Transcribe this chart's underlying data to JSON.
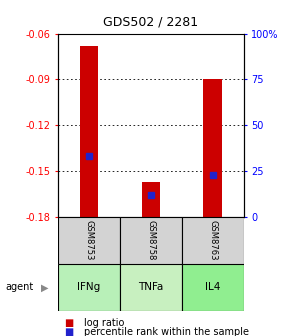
{
  "title": "GDS502 / 2281",
  "samples": [
    "GSM8753",
    "GSM8758",
    "GSM8763"
  ],
  "agents": [
    "IFNg",
    "TNFa",
    "IL4"
  ],
  "log_ratios": [
    -0.068,
    -0.157,
    -0.09
  ],
  "log_ratio_bases": [
    -0.18,
    -0.18,
    -0.18
  ],
  "percentile_ranks": [
    33,
    12,
    23
  ],
  "ylim_left": [
    -0.18,
    -0.06
  ],
  "ylim_right": [
    0,
    100
  ],
  "yticks_left": [
    -0.18,
    -0.15,
    -0.12,
    -0.09,
    -0.06
  ],
  "yticks_right": [
    0,
    25,
    50,
    75,
    100
  ],
  "ytick_labels_left": [
    "-0.18",
    "-0.15",
    "-0.12",
    "-0.09",
    "-0.06"
  ],
  "ytick_labels_right": [
    "0",
    "25",
    "50",
    "75",
    "100%"
  ],
  "bar_color": "#cc0000",
  "dot_color": "#2222cc",
  "agent_colors": [
    "#b8f0b8",
    "#c8f0c0",
    "#90ee90"
  ],
  "sample_bg_color": "#d3d3d3",
  "bar_width": 0.3,
  "legend_log_ratio": "log ratio",
  "legend_percentile": "percentile rank within the sample",
  "agent_label": "agent"
}
